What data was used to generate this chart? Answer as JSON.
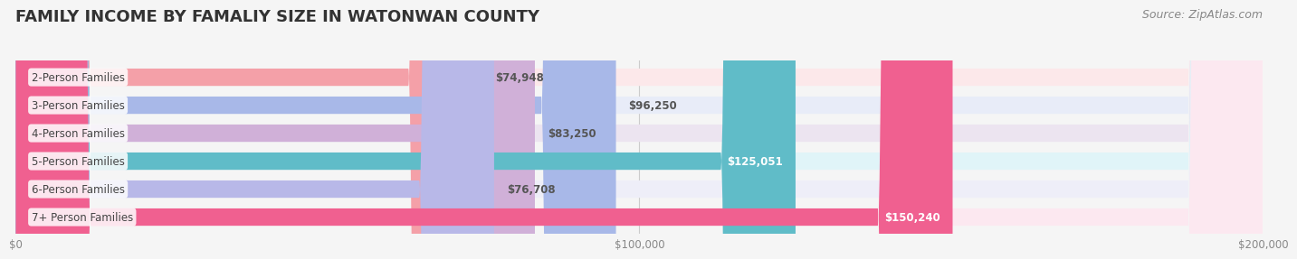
{
  "title": "FAMILY INCOME BY FAMALIY SIZE IN WATONWAN COUNTY",
  "source": "Source: ZipAtlas.com",
  "categories": [
    "2-Person Families",
    "3-Person Families",
    "4-Person Families",
    "5-Person Families",
    "6-Person Families",
    "7+ Person Families"
  ],
  "values": [
    74948,
    96250,
    83250,
    125051,
    76708,
    150240
  ],
  "bar_colors": [
    "#f4a0a8",
    "#a8b8e8",
    "#d0b0d8",
    "#60bcc8",
    "#b8b8e8",
    "#f06090"
  ],
  "bar_bg_colors": [
    "#fce8ea",
    "#e8ecf8",
    "#ece4f0",
    "#e0f4f8",
    "#eeeef8",
    "#fce8f0"
  ],
  "label_colors": [
    "#888888",
    "#888888",
    "#888888",
    "#ffffff",
    "#888888",
    "#ffffff"
  ],
  "value_labels": [
    "$74,948",
    "$96,250",
    "$83,250",
    "$125,051",
    "$76,708",
    "$150,240"
  ],
  "xlim": [
    0,
    200000
  ],
  "xticks": [
    0,
    100000,
    200000
  ],
  "xticklabels": [
    "$0",
    "$100,000",
    "$200,000"
  ],
  "title_fontsize": 13,
  "source_fontsize": 9,
  "background_color": "#f5f5f5",
  "bar_height": 0.62,
  "bar_gap": 0.05
}
